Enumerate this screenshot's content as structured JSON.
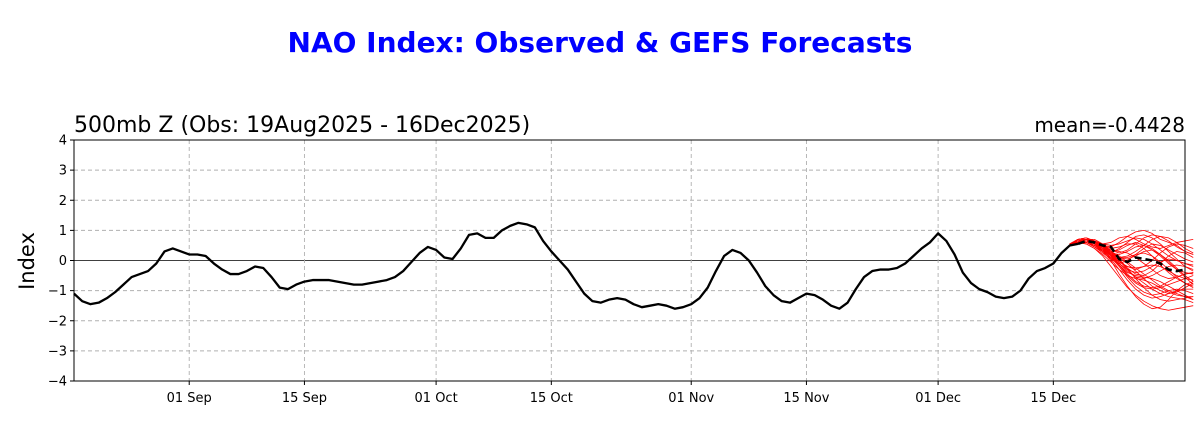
{
  "figure": {
    "suptitle": "NAO Index: Observed & GEFS Forecasts",
    "subtitle_left": "500mb Z (Obs: 19Aug2025 - 16Dec2025)",
    "subtitle_right": "mean=-0.4428"
  },
  "chart_data": {
    "type": "line",
    "title": "NAO Index: Observed & GEFS Forecasts",
    "subtitle": "500mb Z (Obs: 19Aug2025 - 16Dec2025)",
    "annotation": "mean=-0.4428",
    "ylabel": "Index",
    "xlabel": "",
    "ylim": [
      -4,
      4
    ],
    "yticks": [
      -4,
      -3,
      -2,
      -1,
      0,
      1,
      2,
      3,
      4
    ],
    "xlim": [
      "2025-08-18",
      "2025-12-31"
    ],
    "xticks": [
      {
        "date": "2025-09-01",
        "label": "01 Sep"
      },
      {
        "date": "2025-09-15",
        "label": "15 Sep"
      },
      {
        "date": "2025-10-01",
        "label": "01 Oct"
      },
      {
        "date": "2025-10-15",
        "label": "15 Oct"
      },
      {
        "date": "2025-11-01",
        "label": "01 Nov"
      },
      {
        "date": "2025-11-15",
        "label": "15 Nov"
      },
      {
        "date": "2025-12-01",
        "label": "01 Dec"
      },
      {
        "date": "2025-12-15",
        "label": "15 Dec"
      }
    ],
    "grid": true,
    "zero_line": true,
    "colors": {
      "observed": "#000000",
      "members": "#ff0000",
      "mean": "#000000",
      "title": "#0000ff"
    },
    "observed": {
      "start_date": "2025-08-18",
      "values": [
        -1.1,
        -1.35,
        -1.45,
        -1.4,
        -1.25,
        -1.05,
        -0.8,
        -0.55,
        -0.45,
        -0.35,
        -0.1,
        0.3,
        0.4,
        0.3,
        0.2,
        0.2,
        0.15,
        -0.1,
        -0.3,
        -0.45,
        -0.45,
        -0.35,
        -0.2,
        -0.25,
        -0.55,
        -0.9,
        -0.95,
        -0.8,
        -0.7,
        -0.65,
        -0.65,
        -0.65,
        -0.7,
        -0.75,
        -0.8,
        -0.8,
        -0.75,
        -0.7,
        -0.65,
        -0.55,
        -0.35,
        -0.05,
        0.25,
        0.45,
        0.35,
        0.1,
        0.05,
        0.4,
        0.85,
        0.9,
        0.75,
        0.75,
        1.0,
        1.15,
        1.25,
        1.2,
        1.1,
        0.65,
        0.3,
        0.0,
        -0.3,
        -0.7,
        -1.1,
        -1.35,
        -1.4,
        -1.3,
        -1.25,
        -1.3,
        -1.45,
        -1.55,
        -1.5,
        -1.45,
        -1.5,
        -1.6,
        -1.55,
        -1.45,
        -1.25,
        -0.9,
        -0.35,
        0.15,
        0.35,
        0.25,
        0.0,
        -0.4,
        -0.85,
        -1.15,
        -1.35,
        -1.4,
        -1.25,
        -1.1,
        -1.15,
        -1.3,
        -1.5,
        -1.6,
        -1.4,
        -0.95,
        -0.55,
        -0.35,
        -0.3,
        -0.3,
        -0.25,
        -0.1,
        0.15,
        0.4,
        0.6,
        0.9,
        0.65,
        0.2,
        -0.4,
        -0.75,
        -0.95,
        -1.05,
        -1.2,
        -1.25,
        -1.2,
        -1.0,
        -0.6,
        -0.35,
        -0.25,
        -0.1,
        0.25,
        0.5,
        0.55
      ]
    },
    "ensemble_mean": {
      "start_date": "2025-12-18",
      "values": [
        0.55,
        0.65,
        0.6,
        0.5,
        0.45,
        0.05,
        -0.05,
        0.1,
        0.05,
        0.0,
        -0.1,
        -0.3,
        -0.35,
        -0.3
      ]
    },
    "members": {
      "start_date": "2025-12-17",
      "series": [
        [
          0.55,
          0.6,
          0.65,
          0.55,
          0.4,
          0.2,
          0.0,
          -0.3,
          -0.55,
          -0.75,
          -0.95,
          -1.1,
          -1.2,
          -1.25,
          -1.3,
          -1.4
        ],
        [
          0.55,
          0.65,
          0.7,
          0.55,
          0.3,
          0.0,
          -0.45,
          -0.85,
          -1.2,
          -1.45,
          -1.6,
          -1.55,
          -1.3,
          -1.0,
          -0.8,
          -0.7
        ],
        [
          0.55,
          0.6,
          0.65,
          0.6,
          0.5,
          0.45,
          0.6,
          0.8,
          0.95,
          1.0,
          0.9,
          0.7,
          0.6,
          0.5,
          0.3,
          0.2
        ],
        [
          0.55,
          0.7,
          0.75,
          0.65,
          0.55,
          0.6,
          0.75,
          0.8,
          0.7,
          0.55,
          0.45,
          0.4,
          0.5,
          0.6,
          0.65,
          0.7
        ],
        [
          0.55,
          0.6,
          0.55,
          0.4,
          0.15,
          -0.2,
          -0.55,
          -0.9,
          -1.15,
          -1.35,
          -1.5,
          -1.6,
          -1.65,
          -1.6,
          -1.55,
          -1.5
        ],
        [
          0.55,
          0.65,
          0.7,
          0.7,
          0.55,
          0.3,
          0.1,
          -0.1,
          -0.35,
          -0.6,
          -0.85,
          -1.0,
          -1.1,
          -1.05,
          -0.9,
          -0.75
        ],
        [
          0.55,
          0.6,
          0.6,
          0.45,
          0.25,
          0.05,
          -0.1,
          0.0,
          0.2,
          0.4,
          0.55,
          0.5,
          0.35,
          0.2,
          0.05,
          -0.05
        ],
        [
          0.55,
          0.7,
          0.75,
          0.6,
          0.4,
          0.3,
          0.35,
          0.5,
          0.6,
          0.5,
          0.35,
          0.15,
          -0.1,
          -0.3,
          -0.4,
          -0.45
        ],
        [
          0.55,
          0.6,
          0.65,
          0.5,
          0.3,
          0.1,
          -0.15,
          -0.4,
          -0.5,
          -0.55,
          -0.6,
          -0.7,
          -0.85,
          -1.0,
          -1.15,
          -1.3
        ],
        [
          0.55,
          0.65,
          0.65,
          0.55,
          0.45,
          0.25,
          0.0,
          -0.25,
          -0.45,
          -0.5,
          -0.35,
          -0.1,
          0.15,
          0.3,
          0.25,
          0.1
        ],
        [
          0.55,
          0.6,
          0.7,
          0.65,
          0.5,
          0.2,
          -0.15,
          -0.5,
          -0.75,
          -0.9,
          -0.95,
          -0.9,
          -0.8,
          -0.7,
          -0.6,
          -0.5
        ],
        [
          0.55,
          0.65,
          0.6,
          0.45,
          0.3,
          0.25,
          0.4,
          0.6,
          0.8,
          0.85,
          0.75,
          0.55,
          0.3,
          0.05,
          -0.2,
          -0.35
        ],
        [
          0.55,
          0.6,
          0.6,
          0.5,
          0.35,
          0.15,
          -0.05,
          -0.2,
          -0.3,
          -0.2,
          0.0,
          0.25,
          0.45,
          0.55,
          0.5,
          0.4
        ],
        [
          0.55,
          0.7,
          0.7,
          0.55,
          0.35,
          0.1,
          -0.2,
          -0.55,
          -0.85,
          -1.05,
          -1.15,
          -1.1,
          -1.0,
          -0.95,
          -1.0,
          -1.1
        ],
        [
          0.55,
          0.6,
          0.65,
          0.6,
          0.45,
          0.35,
          0.3,
          0.25,
          0.1,
          -0.1,
          -0.3,
          -0.5,
          -0.6,
          -0.55,
          -0.45,
          -0.4
        ],
        [
          0.55,
          0.65,
          0.7,
          0.6,
          0.45,
          0.25,
          0.1,
          0.05,
          0.15,
          0.3,
          0.35,
          0.2,
          0.0,
          -0.25,
          -0.5,
          -0.7
        ],
        [
          0.55,
          0.6,
          0.55,
          0.4,
          0.2,
          -0.05,
          -0.3,
          -0.5,
          -0.6,
          -0.65,
          -0.75,
          -0.9,
          -1.05,
          -1.15,
          -1.2,
          -1.2
        ],
        [
          0.55,
          0.7,
          0.75,
          0.65,
          0.5,
          0.4,
          0.45,
          0.55,
          0.55,
          0.4,
          0.15,
          -0.15,
          -0.4,
          -0.6,
          -0.75,
          -0.85
        ],
        [
          0.55,
          0.6,
          0.65,
          0.55,
          0.4,
          0.15,
          -0.1,
          -0.35,
          -0.55,
          -0.6,
          -0.5,
          -0.35,
          -0.2,
          -0.15,
          -0.2,
          -0.3
        ],
        [
          0.55,
          0.65,
          0.6,
          0.5,
          0.35,
          0.2,
          0.1,
          0.15,
          0.3,
          0.5,
          0.7,
          0.8,
          0.75,
          0.6,
          0.4,
          0.25
        ],
        [
          0.55,
          0.6,
          0.7,
          0.65,
          0.5,
          0.3,
          0.05,
          -0.25,
          -0.6,
          -0.9,
          -1.15,
          -1.3,
          -1.35,
          -1.3,
          -1.25,
          -1.2
        ],
        [
          0.55,
          0.65,
          0.65,
          0.55,
          0.4,
          0.25,
          0.2,
          0.3,
          0.45,
          0.5,
          0.4,
          0.2,
          -0.05,
          -0.3,
          -0.55,
          -0.8
        ],
        [
          0.55,
          0.6,
          0.6,
          0.45,
          0.3,
          0.1,
          -0.1,
          -0.3,
          -0.4,
          -0.35,
          -0.2,
          -0.05,
          0.05,
          0.0,
          -0.1,
          -0.2
        ],
        [
          0.55,
          0.7,
          0.7,
          0.6,
          0.45,
          0.3,
          0.15,
          -0.05,
          -0.25,
          -0.45,
          -0.65,
          -0.85,
          -1.0,
          -1.1,
          -1.2,
          -1.3
        ],
        [
          0.55,
          0.6,
          0.65,
          0.6,
          0.55,
          0.5,
          0.55,
          0.65,
          0.75,
          0.7,
          0.55,
          0.35,
          0.15,
          0.0,
          -0.1,
          -0.15
        ],
        [
          0.55,
          0.65,
          0.7,
          0.6,
          0.4,
          0.15,
          -0.15,
          -0.45,
          -0.7,
          -0.85,
          -0.9,
          -0.85,
          -0.7,
          -0.55,
          -0.45,
          -0.4
        ],
        [
          0.55,
          0.6,
          0.6,
          0.5,
          0.35,
          0.2,
          0.1,
          0.1,
          0.2,
          0.25,
          0.15,
          -0.05,
          -0.3,
          -0.55,
          -0.75,
          -0.9
        ],
        [
          0.55,
          0.65,
          0.65,
          0.55,
          0.35,
          0.05,
          -0.3,
          -0.65,
          -0.95,
          -1.15,
          -1.25,
          -1.2,
          -1.1,
          -1.0,
          -0.95,
          -0.95
        ],
        [
          0.55,
          0.6,
          0.7,
          0.65,
          0.5,
          0.35,
          0.25,
          0.35,
          0.55,
          0.75,
          0.85,
          0.8,
          0.65,
          0.45,
          0.3,
          0.2
        ],
        [
          0.55,
          0.7,
          0.75,
          0.65,
          0.45,
          0.2,
          -0.05,
          -0.2,
          -0.25,
          -0.2,
          -0.15,
          -0.2,
          -0.35,
          -0.5,
          -0.6,
          -0.65
        ]
      ]
    }
  }
}
